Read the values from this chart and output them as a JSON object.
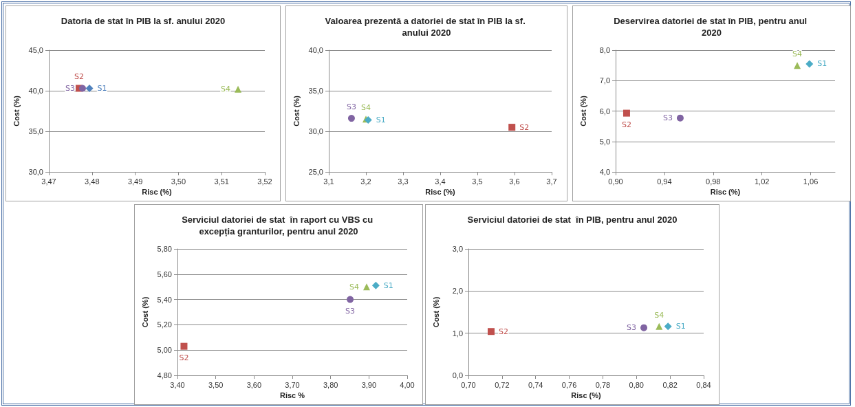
{
  "chart_data": [
    {
      "type": "scatter",
      "title": "Datoria de stat în PIB la sf. anului 2020",
      "xlabel": "Risc (%)",
      "ylabel": "Cost (%)",
      "grid": "y",
      "legend": false,
      "xlim": [
        3.47,
        3.52
      ],
      "xticks": [
        {
          "value": 3.47,
          "label": "3,47"
        },
        {
          "value": 3.48,
          "label": "3,48"
        },
        {
          "value": 3.49,
          "label": "3,49"
        },
        {
          "value": 3.5,
          "label": "3,50"
        },
        {
          "value": 3.51,
          "label": "3,51"
        },
        {
          "value": 3.52,
          "label": "3,52"
        }
      ],
      "ylim": [
        30,
        45
      ],
      "yticks": [
        {
          "value": 30,
          "label": "30,0"
        },
        {
          "value": 35,
          "label": "35,0"
        },
        {
          "value": 40,
          "label": "40,0"
        },
        {
          "value": 45,
          "label": "45,0"
        }
      ],
      "series": [
        {
          "name": "S1",
          "color": "#4f81bd",
          "marker": "diamond",
          "x": [
            3.4794
          ],
          "values": [
            40.3
          ]
        },
        {
          "name": "S2",
          "color": "#c0504d",
          "marker": "square",
          "x": [
            3.477
          ],
          "values": [
            40.3
          ]
        },
        {
          "name": "S3",
          "color": "#8064a2",
          "marker": "circle",
          "x": [
            3.4778
          ],
          "values": [
            40.3
          ]
        },
        {
          "name": "S4",
          "color": "#9bbb59",
          "marker": "triangle",
          "x": [
            3.5138
          ],
          "values": [
            40.2
          ]
        }
      ]
    },
    {
      "type": "scatter",
      "title": "Valoarea prezentă a datoriei de stat în PIB la sf. anului 2020",
      "xlabel": "Risc (%)",
      "ylabel": "Cost (%)",
      "grid": "y",
      "legend": false,
      "xlim": [
        3.1,
        3.7
      ],
      "xticks": [
        {
          "value": 3.1,
          "label": "3,1"
        },
        {
          "value": 3.2,
          "label": "3,2"
        },
        {
          "value": 3.3,
          "label": "3,3"
        },
        {
          "value": 3.4,
          "label": "3,4"
        },
        {
          "value": 3.5,
          "label": "3,5"
        },
        {
          "value": 3.6,
          "label": "3,6"
        },
        {
          "value": 3.7,
          "label": "3,7"
        }
      ],
      "ylim": [
        25,
        40
      ],
      "yticks": [
        {
          "value": 25,
          "label": "25,0"
        },
        {
          "value": 30,
          "label": "30,0"
        },
        {
          "value": 35,
          "label": "35,0"
        },
        {
          "value": 40,
          "label": "40,0"
        }
      ],
      "series": [
        {
          "name": "S1",
          "color": "#4bacc6",
          "marker": "diamond",
          "x": [
            3.206
          ],
          "values": [
            31.4
          ]
        },
        {
          "name": "S2",
          "color": "#c0504d",
          "marker": "square",
          "x": [
            3.593
          ],
          "values": [
            30.5
          ]
        },
        {
          "name": "S3",
          "color": "#8064a2",
          "marker": "circle",
          "x": [
            3.161
          ],
          "values": [
            31.6
          ]
        },
        {
          "name": "S4",
          "color": "#9bbb59",
          "marker": "triangle",
          "x": [
            3.2
          ],
          "values": [
            31.5
          ]
        }
      ]
    },
    {
      "type": "scatter",
      "title": "Deservirea datoriei de stat în PIB, pentru anul 2020",
      "xlabel": "Risc (%)",
      "ylabel": "Cost (%)",
      "grid": "y",
      "legend": false,
      "xlim": [
        0.9,
        1.08
      ],
      "xticks": [
        {
          "value": 0.9,
          "label": "0,90"
        },
        {
          "value": 0.94,
          "label": "0,94"
        },
        {
          "value": 0.98,
          "label": "0,98"
        },
        {
          "value": 1.02,
          "label": "1,02"
        },
        {
          "value": 1.06,
          "label": "1,06"
        }
      ],
      "ylim": [
        4,
        8
      ],
      "yticks": [
        {
          "value": 4,
          "label": "4,0"
        },
        {
          "value": 5,
          "label": "5,0"
        },
        {
          "value": 6,
          "label": "6,0"
        },
        {
          "value": 7,
          "label": "7,0"
        },
        {
          "value": 8,
          "label": "8,0"
        }
      ],
      "series": [
        {
          "name": "S1",
          "color": "#4bacc6",
          "marker": "diamond",
          "x": [
            1.059
          ],
          "values": [
            7.55
          ]
        },
        {
          "name": "S2",
          "color": "#c0504d",
          "marker": "square",
          "x": [
            0.909
          ],
          "values": [
            5.93
          ]
        },
        {
          "name": "S3",
          "color": "#8064a2",
          "marker": "circle",
          "x": [
            0.953
          ],
          "values": [
            5.77
          ]
        },
        {
          "name": "S4",
          "color": "#9bbb59",
          "marker": "triangle",
          "x": [
            1.049
          ],
          "values": [
            7.5
          ]
        }
      ]
    },
    {
      "type": "scatter",
      "title": "Serviciul datoriei de stat  în raport cu VBS cu excepția granturilor, pentru anul 2020",
      "xlabel": "Risc %",
      "ylabel": "Cost (%)",
      "grid": "y",
      "legend": false,
      "xlim": [
        3.4,
        4.0
      ],
      "xticks": [
        {
          "value": 3.4,
          "label": "3,40"
        },
        {
          "value": 3.5,
          "label": "3,50"
        },
        {
          "value": 3.6,
          "label": "3,60"
        },
        {
          "value": 3.7,
          "label": "3,70"
        },
        {
          "value": 3.8,
          "label": "3,80"
        },
        {
          "value": 3.9,
          "label": "3,90"
        },
        {
          "value": 4.0,
          "label": "4,00"
        }
      ],
      "ylim": [
        4.8,
        5.8
      ],
      "yticks": [
        {
          "value": 4.8,
          "label": "4,80"
        },
        {
          "value": 5.0,
          "label": "5,00"
        },
        {
          "value": 5.2,
          "label": "5,20"
        },
        {
          "value": 5.4,
          "label": "5,40"
        },
        {
          "value": 5.6,
          "label": "5,60"
        },
        {
          "value": 5.8,
          "label": "5,80"
        }
      ],
      "series": [
        {
          "name": "S1",
          "color": "#4bacc6",
          "marker": "diamond",
          "x": [
            3.918
          ],
          "values": [
            5.51
          ]
        },
        {
          "name": "S2",
          "color": "#c0504d",
          "marker": "square",
          "x": [
            3.417
          ],
          "values": [
            5.03
          ]
        },
        {
          "name": "S3",
          "color": "#8064a2",
          "marker": "circle",
          "x": [
            3.851
          ],
          "values": [
            5.4
          ]
        },
        {
          "name": "S4",
          "color": "#9bbb59",
          "marker": "triangle",
          "x": [
            3.894
          ],
          "values": [
            5.5
          ]
        }
      ]
    },
    {
      "type": "scatter",
      "title": "Serviciul datoriei de stat  în PIB, pentru anul 2020",
      "xlabel": "Risc (%)",
      "ylabel": "Cost (%)",
      "grid": "y",
      "legend": false,
      "xlim": [
        0.7,
        0.84
      ],
      "xticks": [
        {
          "value": 0.7,
          "label": "0,70"
        },
        {
          "value": 0.72,
          "label": "0,72"
        },
        {
          "value": 0.74,
          "label": "0,74"
        },
        {
          "value": 0.76,
          "label": "0,76"
        },
        {
          "value": 0.78,
          "label": "0,78"
        },
        {
          "value": 0.8,
          "label": "0,80"
        },
        {
          "value": 0.82,
          "label": "0,82"
        },
        {
          "value": 0.84,
          "label": "0,84"
        }
      ],
      "ylim": [
        0,
        3
      ],
      "yticks": [
        {
          "value": 0,
          "label": "0,0"
        },
        {
          "value": 1,
          "label": "1,0"
        },
        {
          "value": 2,
          "label": "2,0"
        },
        {
          "value": 3,
          "label": "3,0"
        }
      ],
      "series": [
        {
          "name": "S1",
          "color": "#4bacc6",
          "marker": "diamond",
          "x": [
            0.8188
          ],
          "values": [
            1.16
          ]
        },
        {
          "name": "S2",
          "color": "#c0504d",
          "marker": "square",
          "x": [
            0.7135
          ],
          "values": [
            1.04
          ]
        },
        {
          "name": "S3",
          "color": "#8064a2",
          "marker": "circle",
          "x": [
            0.8044
          ],
          "values": [
            1.13
          ]
        },
        {
          "name": "S4",
          "color": "#9bbb59",
          "marker": "triangle",
          "x": [
            0.8135
          ],
          "values": [
            1.16
          ]
        }
      ]
    }
  ]
}
